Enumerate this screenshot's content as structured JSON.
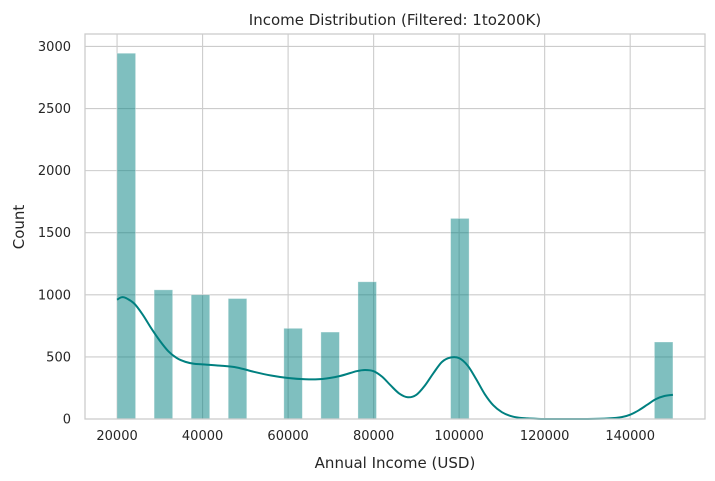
{
  "chart_data": {
    "type": "bar",
    "subtype": "histogram-with-kde",
    "title": "Income Distribution (Filtered: 1to200K)",
    "xlabel": "Annual Income (USD)",
    "ylabel": "Count",
    "xlim": [
      12500,
      157500
    ],
    "ylim": [
      0,
      3100
    ],
    "xticks": [
      20000,
      40000,
      60000,
      80000,
      100000,
      120000,
      140000
    ],
    "yticks": [
      0,
      500,
      1000,
      1500,
      2000,
      2500,
      3000
    ],
    "grid": true,
    "bin_width": 4333,
    "bars": [
      {
        "x_start": 20000,
        "x_end": 24333,
        "count": 2945
      },
      {
        "x_start": 28667,
        "x_end": 33000,
        "count": 1040
      },
      {
        "x_start": 37333,
        "x_end": 41667,
        "count": 1000
      },
      {
        "x_start": 46000,
        "x_end": 50333,
        "count": 970
      },
      {
        "x_start": 59000,
        "x_end": 63333,
        "count": 730
      },
      {
        "x_start": 67667,
        "x_end": 72000,
        "count": 700
      },
      {
        "x_start": 76333,
        "x_end": 80667,
        "count": 1105
      },
      {
        "x_start": 98000,
        "x_end": 102333,
        "count": 1615
      },
      {
        "x_start": 145667,
        "x_end": 150000,
        "count": 620
      }
    ],
    "kde": {
      "x": [
        20000,
        21000,
        22000,
        24000,
        26000,
        28000,
        30000,
        32000,
        34000,
        36000,
        38000,
        40000,
        44000,
        48000,
        52000,
        56000,
        60000,
        64000,
        68000,
        72000,
        76000,
        78000,
        80000,
        82000,
        84000,
        86000,
        88000,
        90000,
        92000,
        94000,
        96000,
        98000,
        100000,
        102000,
        104000,
        106000,
        108000,
        110000,
        112000,
        114000,
        116000,
        118000,
        120000,
        125000,
        130000,
        135000,
        138000,
        140000,
        142000,
        144000,
        146000,
        148000,
        150000
      ],
      "y": [
        960,
        980,
        975,
        930,
        840,
        730,
        630,
        545,
        490,
        460,
        445,
        440,
        430,
        415,
        380,
        350,
        330,
        320,
        322,
        345,
        385,
        395,
        385,
        340,
        270,
        205,
        175,
        195,
        270,
        370,
        460,
        495,
        490,
        430,
        320,
        200,
        110,
        55,
        25,
        10,
        5,
        2,
        0,
        0,
        0,
        5,
        15,
        35,
        70,
        115,
        160,
        185,
        195
      ]
    },
    "colors": {
      "bar_fill": "#008080",
      "bar_opacity": 0.5,
      "kde_line": "#008080",
      "grid": "#cccccc",
      "spine": "#cccccc",
      "text": "#262626"
    }
  }
}
